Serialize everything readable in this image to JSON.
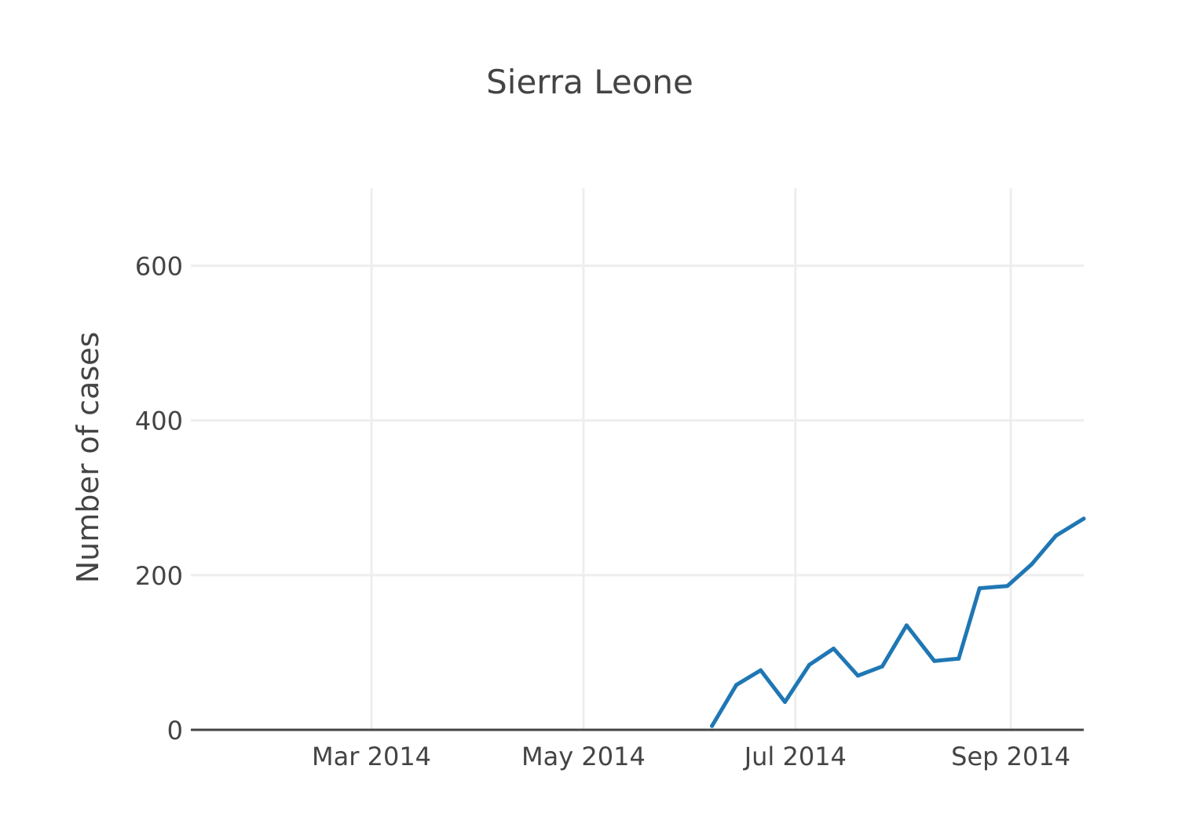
{
  "chart_data": {
    "type": "line",
    "title": "Sierra Leone",
    "ylabel": "Number of cases",
    "xlabel": "",
    "xlim": [
      "2014-01-08",
      "2014-09-22"
    ],
    "ylim": [
      0,
      700
    ],
    "grid": true,
    "legend": "none",
    "x_ticks": [
      {
        "date": "2014-03-01",
        "label": "Mar 2014"
      },
      {
        "date": "2014-05-01",
        "label": "May 2014"
      },
      {
        "date": "2014-07-01",
        "label": "Jul 2014"
      },
      {
        "date": "2014-09-01",
        "label": "Sep 2014"
      }
    ],
    "y_ticks": [
      0,
      200,
      400,
      600
    ],
    "series": [
      {
        "color": "#1f77b4",
        "x": [
          "2014-06-07",
          "2014-06-14",
          "2014-06-21",
          "2014-06-28",
          "2014-07-05",
          "2014-07-12",
          "2014-07-19",
          "2014-07-26",
          "2014-08-02",
          "2014-08-10",
          "2014-08-17",
          "2014-08-23",
          "2014-08-31",
          "2014-09-07",
          "2014-09-14",
          "2014-09-22"
        ],
        "values": [
          5,
          58,
          77,
          36,
          84,
          105,
          70,
          82,
          135,
          89,
          92,
          183,
          186,
          214,
          251,
          273
        ]
      }
    ]
  }
}
